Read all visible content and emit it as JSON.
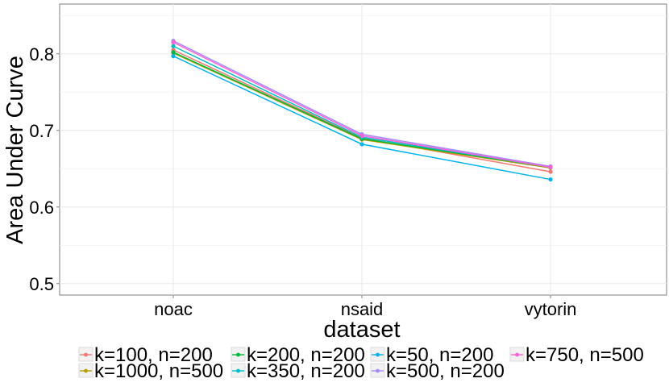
{
  "chart_data": {
    "type": "line",
    "xlabel": "dataset",
    "ylabel": "Area Under Curve",
    "categories": [
      "noac",
      "nsaid",
      "vytorin"
    ],
    "ylim": [
      0.485,
      0.865
    ],
    "yticks": [
      0.5,
      0.6,
      0.7,
      0.8
    ],
    "ytick_labels": [
      "0.5",
      "0.6",
      "0.7",
      "0.8"
    ],
    "grid": true,
    "legend_position": "bottom",
    "series": [
      {
        "name": "k=100, n=200",
        "color": "#F8766D",
        "values": [
          0.805,
          0.69,
          0.646
        ]
      },
      {
        "name": "k=1000, n=500",
        "color": "#B79F00",
        "values": [
          0.801,
          0.688,
          0.651
        ]
      },
      {
        "name": "k=200, n=200",
        "color": "#00BA38",
        "values": [
          0.802,
          0.689,
          0.652
        ]
      },
      {
        "name": "k=350, n=200",
        "color": "#00BFC4",
        "values": [
          0.81,
          0.691,
          0.652
        ]
      },
      {
        "name": "k=50, n=200",
        "color": "#00B4EF",
        "values": [
          0.797,
          0.682,
          0.636
        ]
      },
      {
        "name": "k=500, n=200",
        "color": "#A58AFF",
        "values": [
          0.817,
          0.695,
          0.653
        ]
      },
      {
        "name": "k=750, n=500",
        "color": "#FB61D7",
        "values": [
          0.815,
          0.693,
          0.652
        ]
      }
    ]
  }
}
